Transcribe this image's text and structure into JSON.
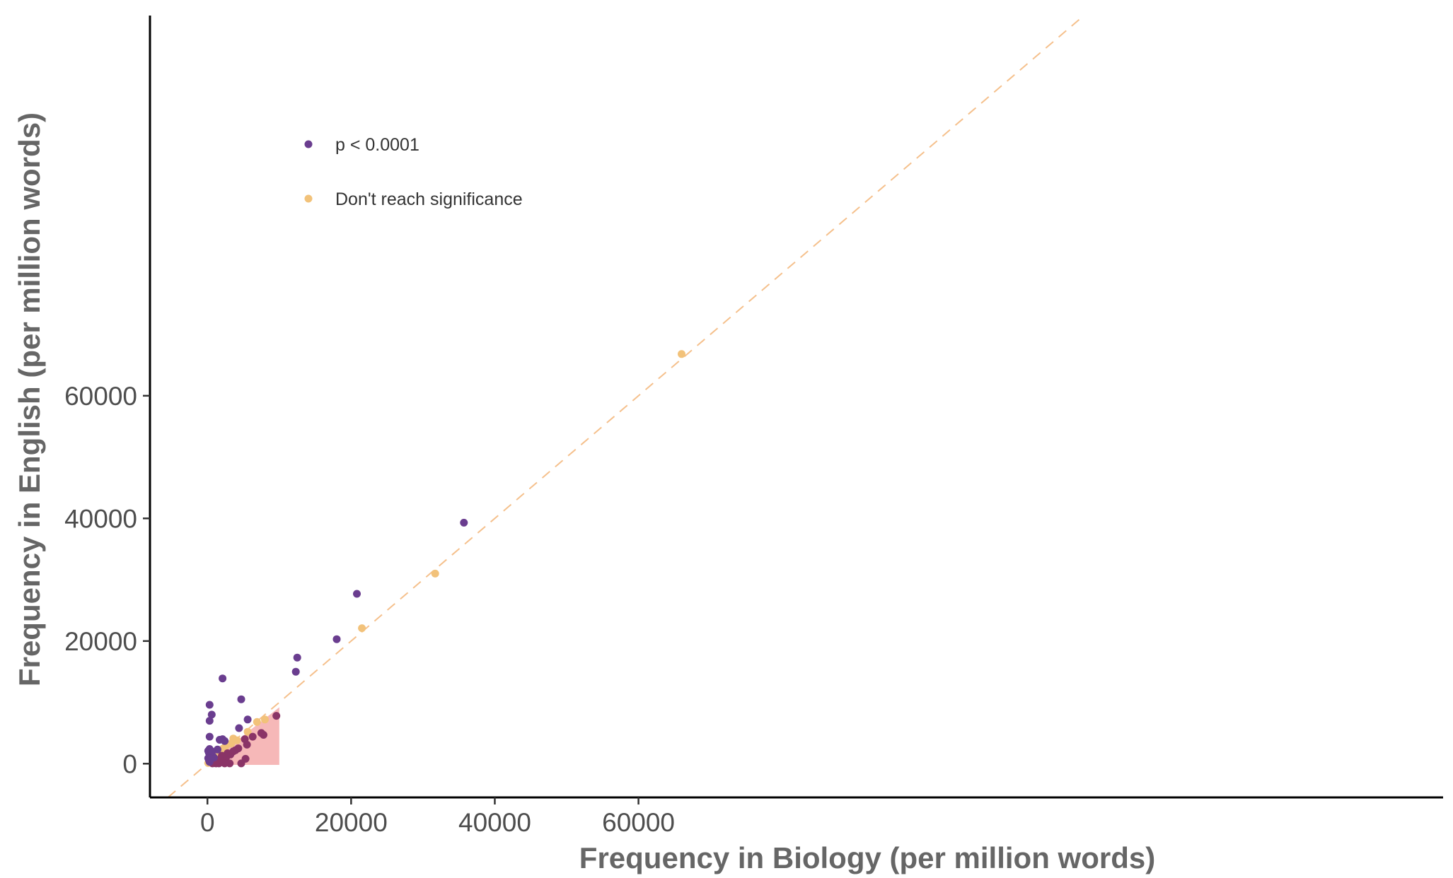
{
  "chart_data": {
    "type": "scatter",
    "title": "",
    "xlabel": "Frequency in Biology (per million words)",
    "ylabel": "Frequency in English (per million words)",
    "xlim": [
      -8000,
      172000
    ],
    "ylim": [
      -5500,
      122000
    ],
    "x_ticks": [
      0,
      20000,
      40000,
      60000
    ],
    "x_tick_labels": [
      "0",
      "20000",
      "40000",
      "60000"
    ],
    "y_ticks": [
      0,
      20000,
      40000,
      60000
    ],
    "y_tick_labels": [
      "0",
      "20000",
      "40000",
      "60000"
    ],
    "grid": false,
    "legend_position": "top-left",
    "reference_line": {
      "type": "identity",
      "style": "dashed",
      "color": "#f5c08c"
    },
    "shaded_region": {
      "color": "#f6b8b8",
      "points": [
        [
          0,
          0
        ],
        [
          10000,
          9200
        ],
        [
          10000,
          -200
        ],
        [
          0,
          -200
        ]
      ]
    },
    "series": [
      {
        "name": "p < 0.0001",
        "color": "#6a3d8f",
        "points": [
          [
            35700,
            39300
          ],
          [
            20800,
            27700
          ],
          [
            18000,
            20300
          ],
          [
            12500,
            17300
          ],
          [
            12300,
            15000
          ],
          [
            2100,
            13900
          ],
          [
            4700,
            10500
          ],
          [
            300,
            9600
          ],
          [
            600,
            8000
          ],
          [
            300,
            7000
          ],
          [
            5600,
            7200
          ],
          [
            4400,
            5800
          ],
          [
            300,
            4400
          ],
          [
            1700,
            3900
          ],
          [
            2100,
            4000
          ],
          [
            2400,
            3700
          ],
          [
            1400,
            2300
          ],
          [
            100,
            2100
          ],
          [
            200,
            1800
          ],
          [
            400,
            1500
          ],
          [
            700,
            1300
          ],
          [
            900,
            1000
          ],
          [
            300,
            2400
          ],
          [
            600,
            2000
          ],
          [
            100,
            900
          ],
          [
            200,
            600
          ],
          [
            300,
            300
          ],
          [
            500,
            800
          ]
        ]
      },
      {
        "name": "",
        "color": "#8a3467",
        "points": [
          [
            9600,
            7800
          ],
          [
            7800,
            4700
          ],
          [
            7500,
            5000
          ],
          [
            6300,
            4400
          ],
          [
            5200,
            4000
          ],
          [
            5500,
            3100
          ],
          [
            4300,
            2500
          ],
          [
            3900,
            2200
          ],
          [
            3600,
            2000
          ],
          [
            3200,
            1500
          ],
          [
            2600,
            1200
          ],
          [
            2200,
            900
          ],
          [
            2600,
            1000
          ],
          [
            1900,
            500
          ],
          [
            1500,
            300
          ],
          [
            1100,
            200
          ],
          [
            800,
            100
          ],
          [
            5300,
            800
          ],
          [
            4700,
            50
          ],
          [
            3100,
            50
          ],
          [
            2400,
            50
          ],
          [
            1600,
            50
          ],
          [
            1200,
            50
          ],
          [
            700,
            50
          ],
          [
            2800,
            1700
          ],
          [
            2000,
            1300
          ],
          [
            1700,
            700
          ],
          [
            1300,
            500
          ],
          [
            1000,
            350
          ],
          [
            600,
            200
          ]
        ]
      },
      {
        "name": "Don't reach significance",
        "color": "#f2c27a",
        "points": [
          [
            66000,
            66800
          ],
          [
            31700,
            31000
          ],
          [
            21500,
            22100
          ],
          [
            8000,
            7200
          ],
          [
            6900,
            6800
          ],
          [
            5600,
            5200
          ],
          [
            3600,
            4100
          ],
          [
            4100,
            3800
          ],
          [
            3300,
            3300
          ],
          [
            2600,
            3000
          ],
          [
            2400,
            2600
          ],
          [
            2000,
            2100
          ],
          [
            1700,
            1800
          ],
          [
            1300,
            1500
          ],
          [
            1100,
            1200
          ],
          [
            900,
            1000
          ],
          [
            700,
            800
          ],
          [
            500,
            600
          ],
          [
            300,
            300
          ],
          [
            200,
            200
          ],
          [
            100,
            100
          ],
          [
            800,
            700
          ],
          [
            1500,
            1500
          ],
          [
            2200,
            2500
          ]
        ]
      }
    ]
  }
}
